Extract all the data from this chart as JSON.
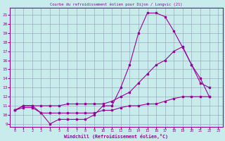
{
  "title": "Courbe du refroidissement éolien pour Dijon / Longvic (21)",
  "xlabel": "Windchill (Refroidissement éolien,°C)",
  "bg_color": "#c8ecec",
  "line_color": "#990099",
  "grid_color": "#9999bb",
  "xlim": [
    -0.5,
    23.5
  ],
  "ylim": [
    8.7,
    21.8
  ],
  "xticks": [
    0,
    1,
    2,
    3,
    4,
    5,
    6,
    7,
    8,
    9,
    10,
    11,
    12,
    13,
    14,
    15,
    16,
    17,
    18,
    19,
    20,
    21,
    22,
    23
  ],
  "yticks": [
    9,
    10,
    11,
    12,
    13,
    14,
    15,
    16,
    17,
    18,
    19,
    20,
    21
  ],
  "line1_x": [
    0,
    1,
    2,
    3,
    4,
    5,
    6,
    7,
    8,
    9,
    10,
    11,
    12,
    13,
    14,
    15,
    16,
    17,
    18,
    19,
    20,
    21,
    22
  ],
  "line1_y": [
    10.5,
    11.0,
    11.0,
    10.2,
    9.0,
    9.5,
    9.5,
    9.5,
    9.5,
    10.0,
    11.0,
    11.0,
    13.0,
    15.5,
    19.0,
    21.2,
    21.2,
    20.8,
    19.2,
    17.4,
    15.5,
    13.5,
    13.0
  ],
  "line2_x": [
    0,
    1,
    2,
    3,
    4,
    5,
    6,
    7,
    8,
    9,
    10,
    11,
    12,
    13,
    14,
    15,
    16,
    17,
    18,
    19,
    20,
    21,
    22
  ],
  "line2_y": [
    10.5,
    11.0,
    11.0,
    11.0,
    11.0,
    11.0,
    11.2,
    11.2,
    11.2,
    11.2,
    11.2,
    11.5,
    12.0,
    12.5,
    13.5,
    14.5,
    15.5,
    16.0,
    17.0,
    17.5,
    15.5,
    14.0,
    12.0
  ],
  "line3_x": [
    0,
    1,
    2,
    3,
    4,
    5,
    6,
    7,
    8,
    9,
    10,
    11,
    12,
    13,
    14,
    15,
    16,
    17,
    18,
    19,
    20,
    21,
    22
  ],
  "line3_y": [
    10.5,
    10.8,
    10.8,
    10.2,
    10.2,
    10.2,
    10.2,
    10.2,
    10.2,
    10.2,
    10.5,
    10.5,
    10.8,
    11.0,
    11.0,
    11.2,
    11.2,
    11.5,
    11.8,
    12.0,
    12.0,
    12.0,
    12.0
  ]
}
